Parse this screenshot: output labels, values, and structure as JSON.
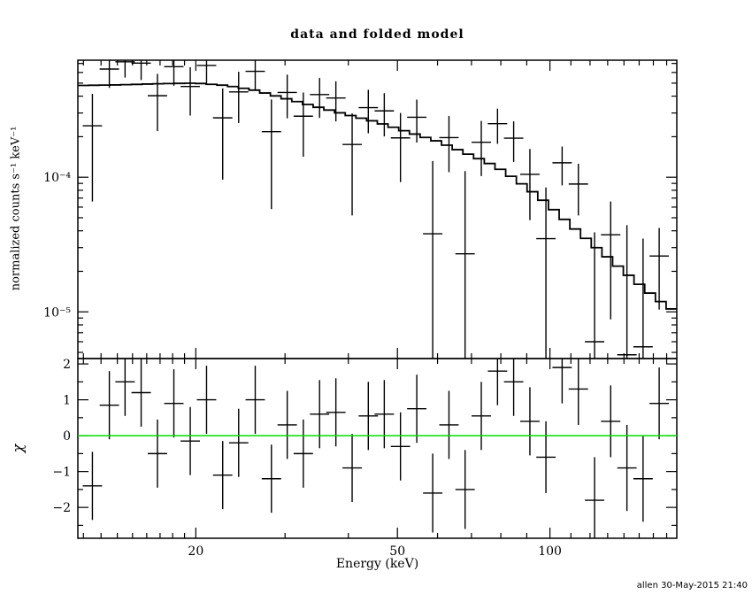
{
  "window": {
    "background": "#ffffff",
    "foreground": "#000000"
  },
  "footer": {
    "signature": "allen 30-May-2015 21:40"
  },
  "chart_data": {
    "type": "line",
    "plot_kind": "xspec-data-and-folded-model",
    "title": "data and folded model",
    "legend": "none",
    "grid": false,
    "accent_color": "#00dd00",
    "axes": {
      "x": {
        "label": "Energy (keV)",
        "scale": "log",
        "lim": [
          11.7,
          178
        ],
        "major": [
          {
            "v": 20,
            "label": "20"
          },
          {
            "v": 50,
            "label": "50"
          },
          {
            "v": 100,
            "label": "100"
          }
        ],
        "minor": [
          12,
          13,
          14,
          15,
          16,
          17,
          18,
          19,
          30,
          40,
          60,
          70,
          80,
          90,
          110,
          120,
          130,
          140,
          150,
          160,
          170
        ]
      },
      "y_top": {
        "label": "normalized counts s⁻¹ keV⁻¹",
        "scale": "log",
        "lim": [
          4.5e-06,
          0.00074
        ],
        "major": [
          {
            "v": 0.0001,
            "label": "10⁻⁴"
          },
          {
            "v": 1e-05,
            "label": "10⁻⁵"
          }
        ]
      },
      "y_bottom": {
        "label": "χ",
        "scale": "linear",
        "lim": [
          -2.86,
          2.15
        ],
        "major": [
          {
            "v": 2,
            "label": "2"
          },
          {
            "v": 1,
            "label": "1"
          },
          {
            "v": 0,
            "label": "0"
          },
          {
            "v": -1,
            "label": "−1"
          },
          {
            "v": -2,
            "label": "−2"
          }
        ],
        "minor_step": 0.5,
        "zero_line_color": "#00dd00"
      }
    },
    "model": {
      "name": "folded model (stepped histogram)",
      "e": [
        11.7,
        14,
        17,
        20,
        23,
        26,
        30,
        35,
        40,
        45,
        50,
        55,
        60,
        65,
        70,
        75,
        80,
        85,
        90,
        95,
        100,
        110,
        120,
        130,
        140,
        155,
        170,
        178
      ],
      "v": [
        0.00048,
        0.000485,
        0.000495,
        0.0005,
        0.00048,
        0.000445,
        0.000385,
        0.00033,
        0.00029,
        0.00026,
        0.00023,
        0.000205,
        0.000185,
        0.000163,
        0.000145,
        0.00013,
        0.000114,
        9.8e-05,
        8.4e-05,
        7.2e-05,
        6.1e-05,
        4.4e-05,
        3.3e-05,
        2.55e-05,
        2e-05,
        1.45e-05,
        1.1e-05,
        1e-05
      ],
      "n_bins": 56
    },
    "data_points": [
      {
        "e": 12.5,
        "y": 0.000241,
        "lo": 6.6e-05,
        "hi": 0.000416
      },
      {
        "e": 13.5,
        "y": 0.000636,
        "lo": 0.000461,
        "hi": 0.000811
      },
      {
        "e": 14.5,
        "y": 0.00072,
        "lo": 0.00055,
        "hi": 0.0009
      },
      {
        "e": 15.6,
        "y": 0.000704,
        "lo": 0.000527,
        "hi": 0.000881
      },
      {
        "e": 16.8,
        "y": 0.000403,
        "lo": 0.00022,
        "hi": 0.000586
      },
      {
        "e": 18.1,
        "y": 0.000662,
        "lo": 0.000478,
        "hi": 0.000846
      },
      {
        "e": 19.5,
        "y": 0.000472,
        "lo": 0.000287,
        "hi": 0.000657
      },
      {
        "e": 21.0,
        "y": 0.000676,
        "lo": 0.00049,
        "hi": 0.000862
      },
      {
        "e": 22.6,
        "y": 0.000276,
        "lo": 9.6e-05,
        "hi": 0.000457
      },
      {
        "e": 24.3,
        "y": 0.00043,
        "lo": 0.000253,
        "hi": 0.000607
      },
      {
        "e": 26.2,
        "y": 0.000612,
        "lo": 0.00044,
        "hi": 0.000784
      },
      {
        "e": 28.2,
        "y": 0.000218,
        "lo": 5.8e-05,
        "hi": 0.000378
      },
      {
        "e": 30.3,
        "y": 0.000426,
        "lo": 0.000274,
        "hi": 0.000578
      },
      {
        "e": 32.6,
        "y": 0.000284,
        "lo": 0.000142,
        "hi": 0.000426
      },
      {
        "e": 35.1,
        "y": 0.000411,
        "lo": 0.000276,
        "hi": 0.000546
      },
      {
        "e": 37.8,
        "y": 0.000388,
        "lo": 0.00026,
        "hi": 0.000516
      },
      {
        "e": 40.7,
        "y": 0.000175,
        "lo": 5.2e-05,
        "hi": 0.000298
      },
      {
        "e": 43.8,
        "y": 0.000329,
        "lo": 0.000212,
        "hi": 0.000446
      },
      {
        "e": 47.1,
        "y": 0.000311,
        "lo": 0.000201,
        "hi": 0.000421
      },
      {
        "e": 50.7,
        "y": 0.000196,
        "lo": 9.2e-05,
        "hi": 0.0003
      },
      {
        "e": 54.6,
        "y": 0.000279,
        "lo": 0.000181,
        "hi": 0.000377
      },
      {
        "e": 58.7,
        "y": 3.8e-05,
        "lo": 1e-06,
        "hi": 0.000132
      },
      {
        "e": 63.2,
        "y": 0.000197,
        "lo": 0.000109,
        "hi": 0.000285
      },
      {
        "e": 68.0,
        "y": 2.7e-05,
        "lo": 1e-06,
        "hi": 0.000111
      },
      {
        "e": 73.2,
        "y": 0.000182,
        "lo": 0.000102,
        "hi": 0.000262
      },
      {
        "e": 78.8,
        "y": 0.00025,
        "lo": 0.000177,
        "hi": 0.000323
      },
      {
        "e": 84.8,
        "y": 0.000195,
        "lo": 0.00013,
        "hi": 0.00026
      },
      {
        "e": 91.3,
        "y": 0.000105,
        "lo": 4.8e-05,
        "hi": 0.000162
      },
      {
        "e": 98.2,
        "y": 3.5e-05,
        "lo": 1e-06,
        "hi": 8.4e-05
      },
      {
        "e": 105.7,
        "y": 0.000128,
        "lo": 8.7e-05,
        "hi": 0.000169
      },
      {
        "e": 113.8,
        "y": 8.9e-05,
        "lo": 5.2e-05,
        "hi": 0.000126
      },
      {
        "e": 122.5,
        "y": 6e-06,
        "lo": 1e-06,
        "hi": 3.9e-05
      },
      {
        "e": 131.8,
        "y": 3.74e-05,
        "lo": 8.8e-06,
        "hi": 6.6e-05
      },
      {
        "e": 141.9,
        "y": 4.8e-06,
        "lo": 1e-06,
        "hi": 4.4e-05
      },
      {
        "e": 152.7,
        "y": 5.5e-06,
        "lo": 1e-06,
        "hi": 3.5e-05
      },
      {
        "e": 164.3,
        "y": 2.6e-05,
        "lo": 1.04e-05,
        "hi": 4.2e-05
      }
    ],
    "residuals": [
      {
        "e": 12.5,
        "chi": -1.4,
        "err": 0.95
      },
      {
        "e": 13.5,
        "chi": 0.85,
        "err": 0.95
      },
      {
        "e": 14.5,
        "chi": 1.5,
        "err": 0.95
      },
      {
        "e": 15.6,
        "chi": 1.2,
        "err": 0.95
      },
      {
        "e": 16.8,
        "chi": -0.5,
        "err": 0.95
      },
      {
        "e": 18.1,
        "chi": 0.9,
        "err": 0.95
      },
      {
        "e": 19.5,
        "chi": -0.15,
        "err": 0.95
      },
      {
        "e": 21.0,
        "chi": 1.0,
        "err": 0.95
      },
      {
        "e": 22.6,
        "chi": -1.1,
        "err": 0.95
      },
      {
        "e": 24.3,
        "chi": -0.2,
        "err": 0.95
      },
      {
        "e": 26.2,
        "chi": 1.0,
        "err": 0.95
      },
      {
        "e": 28.2,
        "chi": -1.2,
        "err": 0.95
      },
      {
        "e": 30.3,
        "chi": 0.3,
        "err": 0.95
      },
      {
        "e": 32.6,
        "chi": -0.5,
        "err": 0.95
      },
      {
        "e": 35.1,
        "chi": 0.6,
        "err": 0.95
      },
      {
        "e": 37.8,
        "chi": 0.65,
        "err": 0.95
      },
      {
        "e": 40.7,
        "chi": -0.9,
        "err": 0.95
      },
      {
        "e": 43.8,
        "chi": 0.55,
        "err": 0.95
      },
      {
        "e": 47.1,
        "chi": 0.6,
        "err": 0.95
      },
      {
        "e": 50.7,
        "chi": -0.3,
        "err": 0.95
      },
      {
        "e": 54.6,
        "chi": 0.75,
        "err": 0.95
      },
      {
        "e": 58.7,
        "chi": -1.6,
        "err": 1.1
      },
      {
        "e": 63.2,
        "chi": 0.3,
        "err": 0.95
      },
      {
        "e": 68.0,
        "chi": -1.5,
        "err": 1.1
      },
      {
        "e": 73.2,
        "chi": 0.55,
        "err": 0.95
      },
      {
        "e": 78.8,
        "chi": 1.8,
        "err": 0.95
      },
      {
        "e": 84.8,
        "chi": 1.5,
        "err": 0.95
      },
      {
        "e": 91.3,
        "chi": 0.4,
        "err": 0.95
      },
      {
        "e": 98.2,
        "chi": -0.6,
        "err": 1.0
      },
      {
        "e": 105.7,
        "chi": 1.9,
        "err": 1.0
      },
      {
        "e": 113.8,
        "chi": 1.3,
        "err": 1.0
      },
      {
        "e": 122.5,
        "chi": -1.8,
        "err": 1.2
      },
      {
        "e": 131.8,
        "chi": 0.4,
        "err": 1.0
      },
      {
        "e": 141.9,
        "chi": -0.9,
        "err": 1.2
      },
      {
        "e": 152.7,
        "chi": -1.2,
        "err": 1.2
      },
      {
        "e": 164.3,
        "chi": 0.9,
        "err": 1.0
      }
    ]
  }
}
